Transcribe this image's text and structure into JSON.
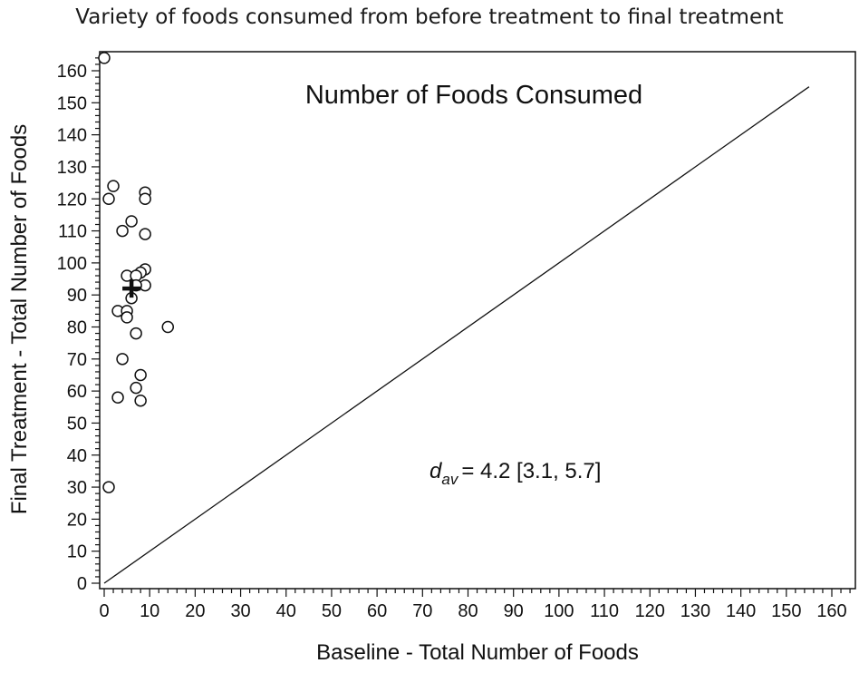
{
  "chart_data": {
    "type": "scatter",
    "title": "Variety of foods consumed from before treatment to final treatment",
    "inner_title": "Number of Foods Consumed",
    "xlabel": "Baseline - Total Number of Foods",
    "ylabel": "Final Treatment - Total Number of Foods",
    "xlim": [
      0,
      165
    ],
    "ylim": [
      0,
      165
    ],
    "xticks": [
      0,
      10,
      20,
      30,
      40,
      50,
      60,
      70,
      80,
      90,
      100,
      110,
      120,
      130,
      140,
      150,
      160
    ],
    "yticks": [
      0,
      10,
      20,
      30,
      40,
      50,
      60,
      70,
      80,
      90,
      100,
      110,
      120,
      130,
      140,
      150,
      160
    ],
    "grid": false,
    "identity_line": {
      "from": [
        0,
        0
      ],
      "to": [
        155,
        155
      ]
    },
    "points": [
      {
        "x": 0,
        "y": 164
      },
      {
        "x": 2,
        "y": 124
      },
      {
        "x": 1,
        "y": 120
      },
      {
        "x": 9,
        "y": 122
      },
      {
        "x": 9,
        "y": 120
      },
      {
        "x": 6,
        "y": 113
      },
      {
        "x": 4,
        "y": 110
      },
      {
        "x": 9,
        "y": 109
      },
      {
        "x": 9,
        "y": 98
      },
      {
        "x": 8,
        "y": 97
      },
      {
        "x": 5,
        "y": 96
      },
      {
        "x": 7,
        "y": 96
      },
      {
        "x": 9,
        "y": 93
      },
      {
        "x": 7,
        "y": 93
      },
      {
        "x": 6,
        "y": 89
      },
      {
        "x": 3,
        "y": 85
      },
      {
        "x": 5,
        "y": 85
      },
      {
        "x": 5,
        "y": 83
      },
      {
        "x": 14,
        "y": 80
      },
      {
        "x": 7,
        "y": 78
      },
      {
        "x": 4,
        "y": 70
      },
      {
        "x": 8,
        "y": 65
      },
      {
        "x": 7,
        "y": 61
      },
      {
        "x": 3,
        "y": 58
      },
      {
        "x": 8,
        "y": 57
      },
      {
        "x": 1,
        "y": 30
      }
    ],
    "mean_marker": {
      "x": 6,
      "y": 92
    },
    "annotation": {
      "symbol": "d",
      "subscript": "av",
      "text": "= 4.2 [3.1, 5.7]"
    },
    "colors": {
      "ink": "#111111",
      "point_fill": "#ffffff"
    }
  }
}
